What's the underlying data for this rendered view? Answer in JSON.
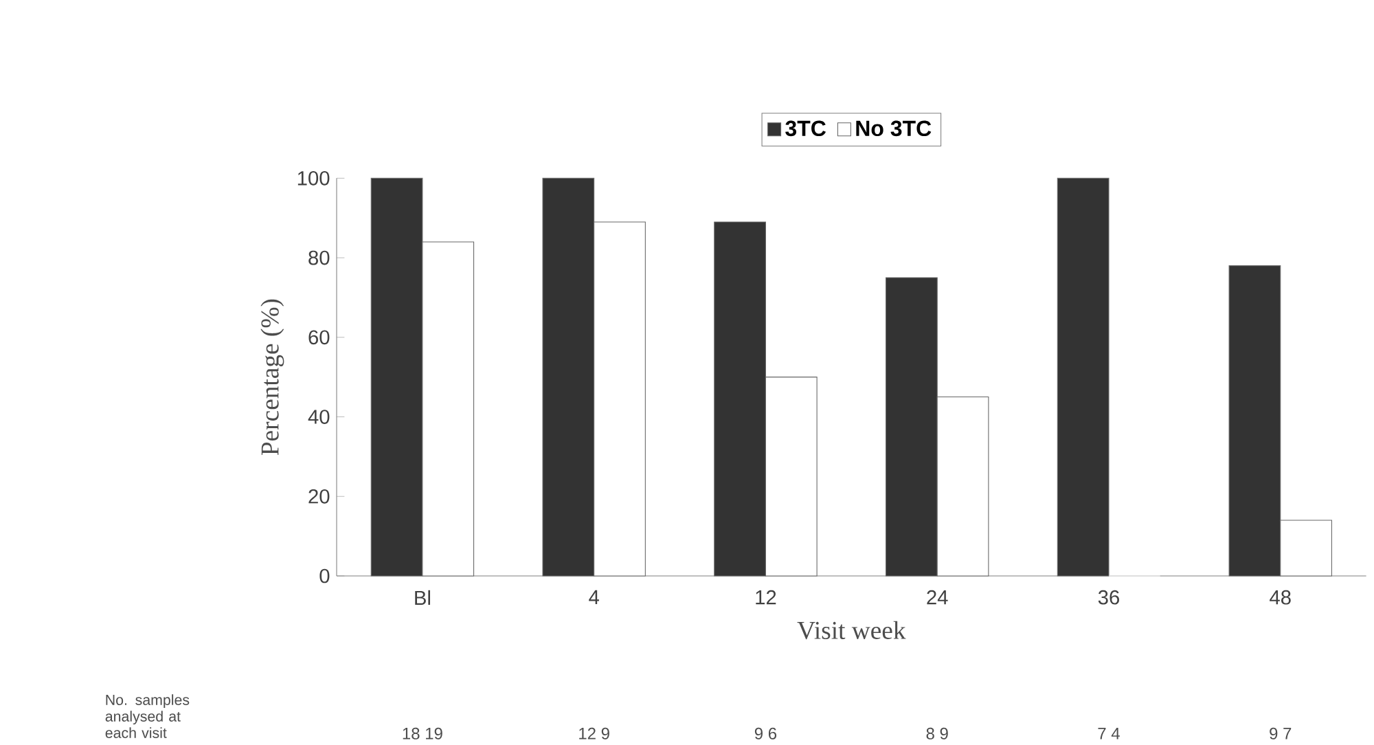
{
  "chart_data": {
    "type": "bar",
    "xlabel": "Visit week",
    "ylabel": "Percentage (%)",
    "categories": [
      "Bl",
      "4",
      "12",
      "24",
      "36",
      "48"
    ],
    "series": [
      {
        "name": "3TC",
        "color": "#333333",
        "values": [
          100,
          100,
          89,
          75,
          100,
          78
        ]
      },
      {
        "name": "No 3TC",
        "color": "#ffffff",
        "values": [
          84,
          89,
          50,
          45,
          0,
          14
        ]
      }
    ],
    "ylim": [
      0,
      100
    ],
    "yticks": [
      0,
      20,
      40,
      60,
      80,
      100
    ],
    "legend": "top",
    "grid": false,
    "annotations": [
      "No. samples analysed at each visit",
      "18     19",
      "12     9",
      "9     6",
      "8     9",
      "7     4",
      "9     7"
    ]
  }
}
